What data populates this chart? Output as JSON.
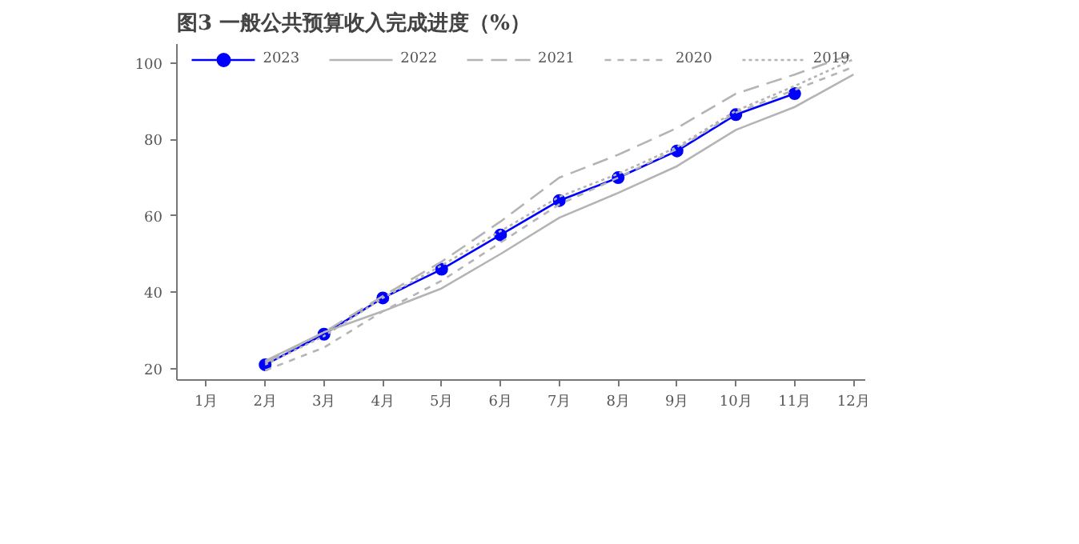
{
  "chart_data": {
    "type": "line",
    "title": "图3  一般公共预算收入完成进度（%）",
    "categories": [
      "1月",
      "2月",
      "3月",
      "4月",
      "5月",
      "6月",
      "7月",
      "8月",
      "9月",
      "10月",
      "11月",
      "12月"
    ],
    "ylim": [
      17,
      105
    ],
    "yticks": [
      20,
      40,
      60,
      80,
      100
    ],
    "grid": false,
    "legend": "top",
    "series": [
      {
        "name": "2023",
        "color": "#0000ff",
        "marker": "circle",
        "line_style": "solid",
        "values": [
          null,
          21,
          29,
          38.5,
          46,
          55,
          64,
          70,
          77,
          86.5,
          92,
          null
        ]
      },
      {
        "name": "2022",
        "color": "#b4b4b4",
        "marker": "none",
        "line_style": "solid",
        "values": [
          null,
          22,
          29.5,
          35,
          41,
          50,
          59.5,
          66,
          73,
          82.5,
          88.5,
          97
        ]
      },
      {
        "name": "2021",
        "color": "#b4b4b4",
        "marker": "none",
        "line_style": "longdash",
        "values": [
          null,
          21.5,
          29.5,
          39,
          48,
          58.5,
          70,
          76,
          83,
          92,
          97,
          102.5
        ]
      },
      {
        "name": "2020",
        "color": "#b4b4b4",
        "marker": "none",
        "line_style": "dashed",
        "values": [
          null,
          19.5,
          25.5,
          35,
          43,
          53,
          63,
          70,
          77.5,
          87,
          93,
          99
        ]
      },
      {
        "name": "2019",
        "color": "#b4b4b4",
        "marker": "none",
        "line_style": "dotted",
        "values": [
          null,
          21,
          28.5,
          38.5,
          47,
          56,
          65,
          71,
          78,
          87.5,
          94,
          101
        ]
      }
    ]
  }
}
